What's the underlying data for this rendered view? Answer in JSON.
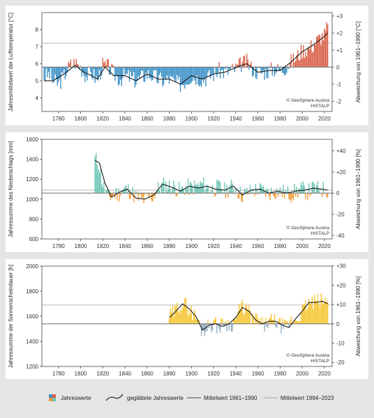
{
  "figure": {
    "legend": {
      "bars_label": "Jahreswerte",
      "smooth_label": "geglättete Jahreswerte",
      "ref_label": "Mittelwert 1961–1990",
      "recent_label": "Mittelwert 1994–2023"
    },
    "colors": {
      "temp_pos": "#d95f46",
      "temp_neg": "#3a8fc4",
      "prec_pos": "#6cc4b4",
      "prec_neg": "#f29a34",
      "sun_pos": "#f5c531",
      "sun_neg": "#8fa8bd",
      "smooth": "#1a1a1a",
      "ref_line": "#7a7a7a",
      "recent_line": "#bdbdbd"
    }
  },
  "chart_data": [
    {
      "type": "bar",
      "ylabel": "Jahresmittelwert der Lufttemperatur [°C]",
      "y2label": "Abweichung von 1961–1990 [°C]",
      "xlim": [
        1765,
        2027
      ],
      "xticks": [
        "1780",
        "1800",
        "1820",
        "1840",
        "1860",
        "1880",
        "1900",
        "1920",
        "1940",
        "1960",
        "1980",
        "2000",
        "2020"
      ],
      "ylim": [
        3.2,
        9.0
      ],
      "yticks": [
        "4",
        "5",
        "6",
        "7",
        "8"
      ],
      "y2ticks": [
        "-2",
        "-1",
        "0",
        "+1",
        "+2",
        "+3"
      ],
      "ref_mean": 5.8,
      "recent_mean": 7.2,
      "start_year": 1767,
      "annotation": [
        "© GeoSphere Austria",
        "HISTALP"
      ],
      "anchors": [
        [
          1767,
          5.2
        ],
        [
          1772,
          5.4
        ],
        [
          1775,
          5.0
        ],
        [
          1780,
          4.8
        ],
        [
          1785,
          5.3
        ],
        [
          1790,
          5.9
        ],
        [
          1795,
          6.1
        ],
        [
          1800,
          5.8
        ],
        [
          1805,
          5.3
        ],
        [
          1810,
          5.5
        ],
        [
          1815,
          5.0
        ],
        [
          1820,
          5.9
        ],
        [
          1825,
          5.8
        ],
        [
          1830,
          5.4
        ],
        [
          1835,
          5.1
        ],
        [
          1840,
          5.3
        ],
        [
          1845,
          5.2
        ],
        [
          1850,
          5.0
        ],
        [
          1855,
          5.2
        ],
        [
          1860,
          5.4
        ],
        [
          1865,
          5.3
        ],
        [
          1870,
          5.1
        ],
        [
          1875,
          5.0
        ],
        [
          1880,
          5.1
        ],
        [
          1885,
          4.9
        ],
        [
          1890,
          4.8
        ],
        [
          1895,
          5.0
        ],
        [
          1900,
          5.3
        ],
        [
          1905,
          5.2
        ],
        [
          1910,
          5.1
        ],
        [
          1915,
          5.2
        ],
        [
          1920,
          5.4
        ],
        [
          1925,
          5.6
        ],
        [
          1930,
          5.5
        ],
        [
          1935,
          5.6
        ],
        [
          1940,
          5.7
        ],
        [
          1945,
          6.0
        ],
        [
          1950,
          6.1
        ],
        [
          1955,
          5.7
        ],
        [
          1960,
          5.5
        ],
        [
          1965,
          5.5
        ],
        [
          1970,
          5.6
        ],
        [
          1975,
          5.7
        ],
        [
          1980,
          5.6
        ],
        [
          1985,
          5.8
        ],
        [
          1990,
          6.1
        ],
        [
          1995,
          6.4
        ],
        [
          2000,
          6.8
        ],
        [
          2005,
          6.9
        ],
        [
          2010,
          7.1
        ],
        [
          2015,
          7.5
        ],
        [
          2020,
          7.7
        ],
        [
          2023,
          8.2
        ]
      ],
      "smooth_anchors": [
        [
          1767,
          5.0
        ],
        [
          1775,
          5.0
        ],
        [
          1785,
          5.4
        ],
        [
          1795,
          5.9
        ],
        [
          1803,
          5.5
        ],
        [
          1810,
          5.3
        ],
        [
          1815,
          5.1
        ],
        [
          1822,
          5.8
        ],
        [
          1830,
          5.3
        ],
        [
          1840,
          5.3
        ],
        [
          1850,
          5.0
        ],
        [
          1860,
          5.4
        ],
        [
          1870,
          5.1
        ],
        [
          1880,
          5.1
        ],
        [
          1890,
          4.8
        ],
        [
          1900,
          5.3
        ],
        [
          1910,
          5.1
        ],
        [
          1920,
          5.4
        ],
        [
          1930,
          5.5
        ],
        [
          1945,
          5.9
        ],
        [
          1950,
          6.0
        ],
        [
          1960,
          5.5
        ],
        [
          1970,
          5.6
        ],
        [
          1980,
          5.6
        ],
        [
          1990,
          6.1
        ],
        [
          2000,
          6.7
        ],
        [
          2010,
          7.1
        ],
        [
          2020,
          7.6
        ],
        [
          2023,
          7.8
        ]
      ],
      "amp": 0.5,
      "seed": 3
    },
    {
      "type": "bar",
      "ylabel": "Jahressumme des Niederschlags [mm]",
      "y2label": "Abweichung von 1961–1990 [%]",
      "xlim": [
        1765,
        2027
      ],
      "xticks": [
        "1780",
        "1800",
        "1820",
        "1840",
        "1860",
        "1880",
        "1900",
        "1920",
        "1940",
        "1960",
        "1980",
        "2000",
        "2020"
      ],
      "ylim": [
        600,
        1600
      ],
      "yticks": [
        "600",
        "800",
        "1000",
        "1200",
        "1400",
        "1600"
      ],
      "y2ticks": [
        "-40",
        "-20",
        "0",
        "+20",
        "+40"
      ],
      "ref_mean": 1060,
      "recent_mean": 1090,
      "start_year": 1813,
      "annotation": [
        "© GeoSphere Austria",
        "HISTALP"
      ],
      "anchors": [
        [
          1813,
          1400
        ],
        [
          1816,
          1370
        ],
        [
          1820,
          1150
        ],
        [
          1825,
          1010
        ],
        [
          1830,
          1050
        ],
        [
          1835,
          1060
        ],
        [
          1840,
          1100
        ],
        [
          1845,
          1080
        ],
        [
          1850,
          1020
        ],
        [
          1855,
          990
        ],
        [
          1860,
          1000
        ],
        [
          1865,
          1030
        ],
        [
          1870,
          1100
        ],
        [
          1875,
          1140
        ],
        [
          1880,
          1130
        ],
        [
          1885,
          1120
        ],
        [
          1890,
          1080
        ],
        [
          1895,
          1120
        ],
        [
          1900,
          1110
        ],
        [
          1905,
          1130
        ],
        [
          1910,
          1150
        ],
        [
          1915,
          1110
        ],
        [
          1920,
          1100
        ],
        [
          1925,
          1120
        ],
        [
          1930,
          1080
        ],
        [
          1935,
          1120
        ],
        [
          1940,
          1110
        ],
        [
          1945,
          1040
        ],
        [
          1950,
          1060
        ],
        [
          1955,
          1080
        ],
        [
          1960,
          1100
        ],
        [
          1965,
          1080
        ],
        [
          1970,
          1060
        ],
        [
          1975,
          1080
        ],
        [
          1980,
          1070
        ],
        [
          1985,
          1060
        ],
        [
          1990,
          1050
        ],
        [
          1995,
          1080
        ],
        [
          2000,
          1100
        ],
        [
          2005,
          1070
        ],
        [
          2010,
          1110
        ],
        [
          2015,
          1090
        ],
        [
          2020,
          1100
        ],
        [
          2023,
          1090
        ]
      ],
      "smooth_anchors": [
        [
          1813,
          1390
        ],
        [
          1817,
          1360
        ],
        [
          1822,
          1160
        ],
        [
          1828,
          1020
        ],
        [
          1835,
          1070
        ],
        [
          1842,
          1100
        ],
        [
          1850,
          1010
        ],
        [
          1858,
          1000
        ],
        [
          1866,
          1040
        ],
        [
          1874,
          1150
        ],
        [
          1882,
          1120
        ],
        [
          1890,
          1080
        ],
        [
          1898,
          1130
        ],
        [
          1906,
          1110
        ],
        [
          1914,
          1130
        ],
        [
          1922,
          1100
        ],
        [
          1930,
          1090
        ],
        [
          1938,
          1130
        ],
        [
          1946,
          1040
        ],
        [
          1954,
          1090
        ],
        [
          1962,
          1100
        ],
        [
          1970,
          1060
        ],
        [
          1978,
          1080
        ],
        [
          1986,
          1060
        ],
        [
          1994,
          1080
        ],
        [
          2002,
          1090
        ],
        [
          2010,
          1110
        ],
        [
          2018,
          1100
        ],
        [
          2023,
          1090
        ]
      ],
      "amp": 90,
      "seed": 11
    },
    {
      "type": "bar",
      "ylabel": "Jahressumme der Sonnenscheindauer [h]",
      "y2label": "Abweichung von 1961–1990 [%]",
      "xlim": [
        1765,
        2027
      ],
      "xticks": [
        "1780",
        "1800",
        "1820",
        "1840",
        "1860",
        "1880",
        "1900",
        "1920",
        "1940",
        "1960",
        "1980",
        "2000",
        "2020"
      ],
      "ylim": [
        1200,
        2000
      ],
      "yticks": [
        "1200",
        "1400",
        "1600",
        "1800",
        "2000"
      ],
      "y2ticks": [
        "-20",
        "-10",
        "0",
        "+10",
        "+20",
        "+30"
      ],
      "ref_mean": 1540,
      "recent_mean": 1690,
      "start_year": 1880,
      "annotation": [
        "© GeoSphere Austria",
        "HISTALP"
      ],
      "anchors": [
        [
          1880,
          1600
        ],
        [
          1885,
          1640
        ],
        [
          1890,
          1700
        ],
        [
          1895,
          1690
        ],
        [
          1900,
          1640
        ],
        [
          1905,
          1580
        ],
        [
          1910,
          1480
        ],
        [
          1915,
          1520
        ],
        [
          1920,
          1550
        ],
        [
          1925,
          1510
        ],
        [
          1930,
          1560
        ],
        [
          1935,
          1520
        ],
        [
          1940,
          1580
        ],
        [
          1945,
          1680
        ],
        [
          1950,
          1660
        ],
        [
          1955,
          1580
        ],
        [
          1960,
          1570
        ],
        [
          1965,
          1520
        ],
        [
          1970,
          1560
        ],
        [
          1975,
          1560
        ],
        [
          1980,
          1530
        ],
        [
          1985,
          1510
        ],
        [
          1990,
          1560
        ],
        [
          1995,
          1580
        ],
        [
          2000,
          1640
        ],
        [
          2005,
          1700
        ],
        [
          2010,
          1710
        ],
        [
          2015,
          1720
        ],
        [
          2020,
          1720
        ],
        [
          2023,
          1700
        ]
      ],
      "smooth_anchors": [
        [
          1880,
          1590
        ],
        [
          1885,
          1630
        ],
        [
          1892,
          1700
        ],
        [
          1898,
          1660
        ],
        [
          1904,
          1600
        ],
        [
          1910,
          1490
        ],
        [
          1916,
          1530
        ],
        [
          1922,
          1540
        ],
        [
          1928,
          1520
        ],
        [
          1934,
          1540
        ],
        [
          1940,
          1590
        ],
        [
          1946,
          1670
        ],
        [
          1952,
          1640
        ],
        [
          1958,
          1570
        ],
        [
          1964,
          1540
        ],
        [
          1970,
          1560
        ],
        [
          1976,
          1560
        ],
        [
          1982,
          1530
        ],
        [
          1988,
          1510
        ],
        [
          1994,
          1580
        ],
        [
          2000,
          1640
        ],
        [
          2006,
          1710
        ],
        [
          2012,
          1710
        ],
        [
          2018,
          1720
        ],
        [
          2023,
          1700
        ]
      ],
      "amp": 65,
      "seed": 29
    }
  ]
}
